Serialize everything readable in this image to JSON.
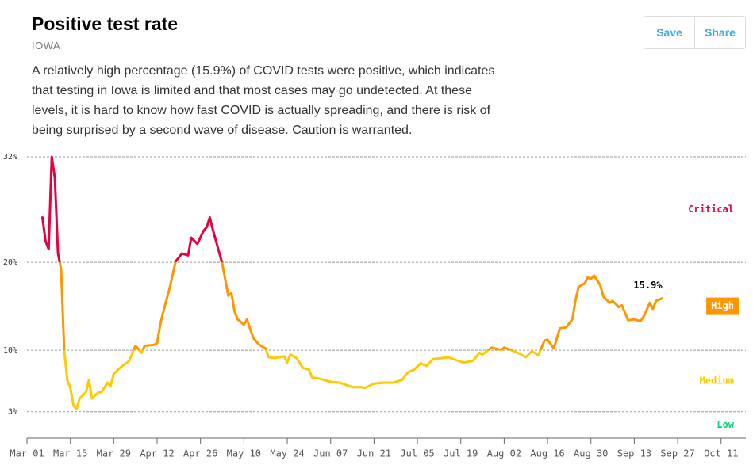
{
  "header": {
    "title": "Positive test rate",
    "region": "IOWA",
    "description": "A relatively high percentage (15.9%) of COVID tests were positive, which indicates that testing in Iowa is limited and that most cases may go undetected. At these levels, it is hard to know how fast COVID is actually spreading, and there is risk of being surprised by a second wave of disease. Caution is warranted.",
    "buttons": [
      "Save",
      "Share"
    ]
  },
  "chart_data": {
    "type": "line",
    "x": [
      "Mar 06",
      "Mar 07",
      "Mar 08",
      "Mar 09",
      "Mar 10",
      "Mar 11",
      "Mar 12",
      "Mar 13",
      "Mar 14",
      "Mar 15",
      "Mar 16",
      "Mar 17",
      "Mar 18",
      "Mar 20",
      "Mar 21",
      "Mar 22",
      "Mar 24",
      "Mar 25",
      "Mar 27",
      "Mar 28",
      "Mar 29",
      "Mar 31",
      "Apr 03",
      "Apr 05",
      "Apr 07",
      "Apr 08",
      "Apr 11",
      "Apr 12",
      "Apr 13",
      "Apr 14",
      "Apr 16",
      "Apr 18",
      "Apr 20",
      "Apr 22",
      "Apr 23",
      "Apr 25",
      "Apr 27",
      "Apr 28",
      "Apr 29",
      "Apr 30",
      "May 03",
      "May 05",
      "May 06",
      "May 07",
      "May 08",
      "May 10",
      "May 11",
      "May 13",
      "May 15",
      "May 17",
      "May 18",
      "May 20",
      "May 23",
      "May 24",
      "May 25",
      "May 27",
      "May 29",
      "May 31",
      "Jun 01",
      "Jun 03",
      "Jun 07",
      "Jun 10",
      "Jun 14",
      "Jun 17",
      "Jun 18",
      "Jun 21",
      "Jun 24",
      "Jun 27",
      "Jun 30",
      "Jul 02",
      "Jul 04",
      "Jul 06",
      "Jul 08",
      "Jul 10",
      "Jul 13",
      "Jul 15",
      "Jul 18",
      "Jul 20",
      "Jul 23",
      "Jul 25",
      "Jul 26",
      "Jul 29",
      "Aug 01",
      "Aug 02",
      "Aug 05",
      "Aug 07",
      "Aug 09",
      "Aug 11",
      "Aug 13",
      "Aug 15",
      "Aug 16",
      "Aug 18",
      "Aug 20",
      "Aug 22",
      "Aug 24",
      "Aug 25",
      "Aug 26",
      "Aug 28",
      "Aug 29",
      "Aug 30",
      "Aug 31",
      "Sep 02",
      "Sep 03",
      "Sep 05",
      "Sep 06",
      "Sep 08",
      "Sep 09",
      "Sep 11",
      "Sep 13",
      "Sep 15",
      "Sep 16",
      "Sep 18",
      "Sep 19",
      "Sep 20",
      "Sep 22"
    ],
    "values": [
      25.1,
      22.4,
      21.5,
      32,
      29.6,
      21,
      19.2,
      10,
      6.6,
      5.7,
      3.7,
      3.3,
      4.5,
      5.2,
      6.6,
      4.5,
      5.2,
      5.2,
      6.3,
      5.9,
      7.3,
      8.0,
      8.8,
      10.5,
      9.7,
      10.5,
      10.6,
      10.8,
      12.9,
      14.4,
      17,
      20.1,
      21,
      20.8,
      22.8,
      22.1,
      23.6,
      24,
      25.1,
      23.7,
      19.9,
      16.2,
      16.5,
      14.4,
      13.5,
      12.9,
      13.5,
      11.4,
      10.6,
      10.2,
      9.2,
      9.1,
      9.3,
      8.6,
      9.5,
      9.1,
      8.0,
      7.8,
      6.9,
      6.8,
      6.4,
      6.3,
      5.8,
      5.8,
      5.7,
      6.2,
      6.3,
      6.3,
      6.6,
      7.5,
      7.8,
      8.5,
      8.2,
      9.0,
      9.1,
      9.2,
      8.8,
      8.6,
      8.8,
      9.7,
      9.5,
      10.3,
      10.0,
      10.3,
      9.9,
      9.6,
      9.2,
      9.9,
      9.4,
      11.1,
      11.2,
      10.2,
      12.5,
      12.6,
      13.5,
      15.6,
      17.2,
      17.6,
      18.3,
      18.1,
      18.5,
      17.4,
      16.1,
      15.4,
      15.6,
      14.9,
      15.1,
      13.4,
      13.5,
      13.3,
      13.8,
      15.4,
      14.7,
      15.6,
      15.9
    ],
    "value_labels": [
      null,
      null,
      null,
      null,
      null,
      null,
      null,
      null,
      null,
      null,
      null,
      null,
      null,
      null,
      null,
      null,
      null,
      null,
      null,
      null,
      null,
      null,
      null,
      null,
      null,
      null,
      null,
      null,
      null,
      null,
      null,
      null,
      null,
      null,
      null,
      null,
      null,
      null,
      null,
      null,
      null,
      null,
      null,
      null,
      null,
      null,
      null,
      null,
      null,
      null,
      null,
      null,
      null,
      null,
      null,
      null,
      null,
      null,
      null,
      null,
      null,
      null,
      null,
      null,
      null,
      null,
      null,
      null,
      null,
      null,
      null,
      null,
      null,
      null,
      null,
      null,
      null,
      null,
      null,
      null,
      null,
      null,
      null,
      null,
      null,
      null,
      null,
      null,
      null,
      null,
      null,
      null,
      null,
      null,
      null,
      null,
      null,
      null,
      null,
      null,
      null,
      null,
      null,
      null,
      null,
      null,
      null,
      null,
      null,
      null,
      null,
      null,
      null,
      null,
      "15.9%"
    ],
    "xlim": [
      "Mar 01",
      "Oct 19"
    ],
    "xticks": [
      "Mar 01",
      "Mar 15",
      "Mar 29",
      "Apr 12",
      "Apr 26",
      "May 10",
      "May 24",
      "Jun 07",
      "Jun 21",
      "Jul 05",
      "Jul 19",
      "Aug 02",
      "Aug 16",
      "Aug 30",
      "Sep 13",
      "Sep 27",
      "Oct 11"
    ],
    "ylim": [
      0,
      32
    ],
    "yticks": [
      {
        "value": 3,
        "label": "3%"
      },
      {
        "value": 10,
        "label": "10%"
      },
      {
        "value": 20,
        "label": "20%"
      },
      {
        "value": 32,
        "label": "32%"
      }
    ],
    "grid": true,
    "zones": [
      {
        "name": "Critical",
        "color": "#e8003f",
        "min": 20
      },
      {
        "name": "High",
        "color": "#ff9600",
        "min": 10
      },
      {
        "name": "Medium",
        "color": "#ffc900",
        "min": 3
      },
      {
        "name": "Low",
        "color": "#00d474",
        "min": 0
      }
    ]
  }
}
